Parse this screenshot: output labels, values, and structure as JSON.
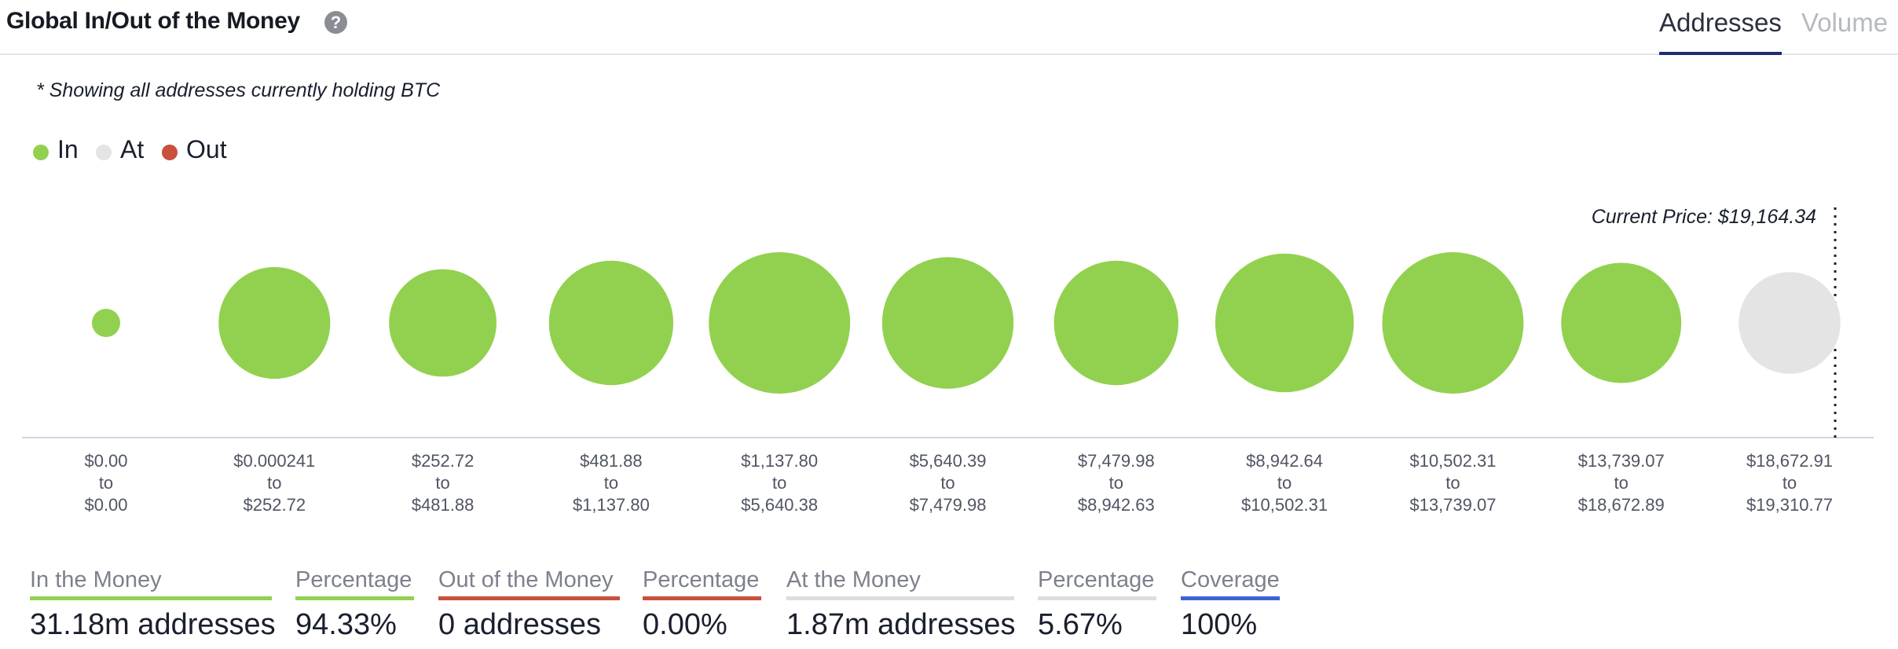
{
  "header": {
    "title": "Global In/Out of the Money",
    "help_icon": "question-circle-icon",
    "tabs": [
      {
        "label": "Addresses",
        "active": true
      },
      {
        "label": "Volume",
        "active": false
      }
    ]
  },
  "note": "* Showing all addresses currently holding BTC",
  "legend": [
    {
      "label": "In",
      "color": "#92d14f"
    },
    {
      "label": "At",
      "color": "#e4e4e4"
    },
    {
      "label": "Out",
      "color": "#c9503c"
    }
  ],
  "chart_data": {
    "type": "bubble",
    "current_price_label": "Current Price: $19,164.34",
    "categories": [
      {
        "from": "$0.00",
        "to": "$0.00"
      },
      {
        "from": "$0.000241",
        "to": "$252.72"
      },
      {
        "from": "$252.72",
        "to": "$481.88"
      },
      {
        "from": "$481.88",
        "to": "$1,137.80"
      },
      {
        "from": "$1,137.80",
        "to": "$5,640.38"
      },
      {
        "from": "$5,640.39",
        "to": "$7,479.98"
      },
      {
        "from": "$7,479.98",
        "to": "$8,942.63"
      },
      {
        "from": "$8,942.64",
        "to": "$10,502.31"
      },
      {
        "from": "$10,502.31",
        "to": "$13,739.07"
      },
      {
        "from": "$13,739.07",
        "to": "$18,672.89"
      },
      {
        "from": "$18,672.91",
        "to": "$19,310.77"
      }
    ],
    "range_connector": "to",
    "relative_size": [
      0.2,
      0.79,
      0.76,
      0.88,
      1.0,
      0.93,
      0.88,
      0.98,
      1.0,
      0.85,
      0.72
    ],
    "status": [
      "in",
      "in",
      "in",
      "in",
      "in",
      "in",
      "in",
      "in",
      "in",
      "in",
      "at"
    ],
    "colors": {
      "in": "#92d14f",
      "at": "#e4e4e4",
      "out": "#c9503c"
    }
  },
  "stats": [
    {
      "label": "In the Money",
      "value": "31.18m addresses",
      "color": "#92d14f"
    },
    {
      "label": "Percentage",
      "value": "94.33%",
      "color": "#92d14f"
    },
    {
      "label": "Out of the Money",
      "value": "0 addresses",
      "color": "#c9503c"
    },
    {
      "label": "Percentage",
      "value": "0.00%",
      "color": "#c9503c"
    },
    {
      "label": "At the Money",
      "value": "1.87m addresses",
      "color": "#dcdde1"
    },
    {
      "label": "Percentage",
      "value": "5.67%",
      "color": "#dcdde1"
    },
    {
      "label": "Coverage",
      "value": "100%",
      "color": "#3e63d6"
    }
  ]
}
